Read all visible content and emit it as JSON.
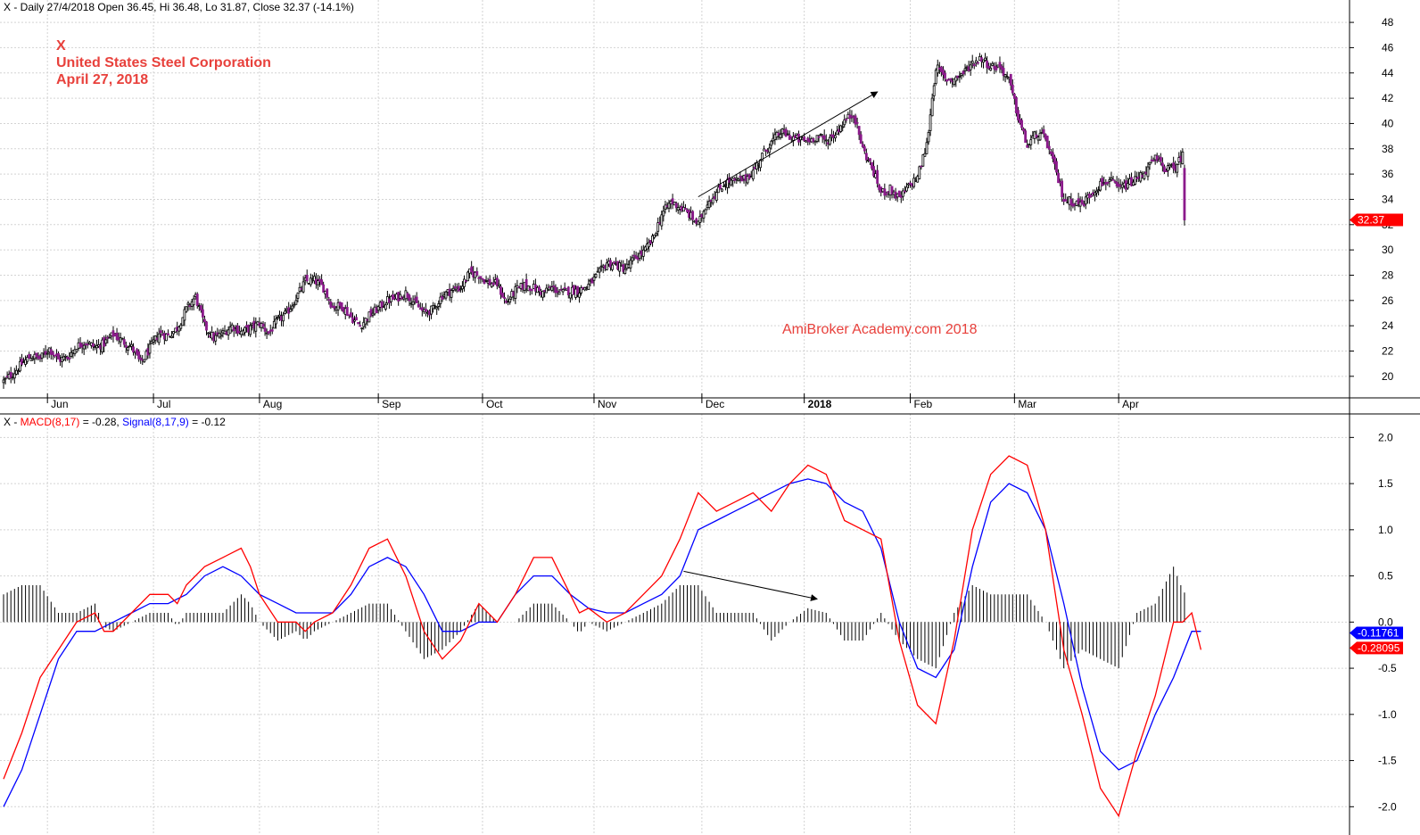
{
  "header": {
    "price_info": "X - Daily 27/4/2018 Open 36.45, Hi 36.48, Lo 31.87, Close 32.37 (-14.1%)",
    "macd_prefix": "X - ",
    "macd_label": "MACD(8,17)",
    "macd_value_text": " = -0.28, ",
    "signal_label": "Signal(8,17,9)",
    "signal_value_text": " = -0.12"
  },
  "title": {
    "symbol": "X",
    "company": "United States Steel Corporation",
    "date": "April 27, 2018"
  },
  "watermark": "AmiBroker Academy.com   2018",
  "colors": {
    "title": "#e8413c",
    "bull_candle": "#ffffff",
    "bear_candle": "#8b1a8b",
    "macd": "#ff0000",
    "signal": "#0000ff",
    "histogram": "#000000",
    "grid": "#d3d3d3",
    "last_price_tag": "#ff0000",
    "signal_tag": "#0000ff",
    "macd_tag": "#ff0000"
  },
  "chart_data": [
    {
      "type": "candlestick",
      "name": "price",
      "x_labels": [
        "Jun",
        "Jul",
        "Aug",
        "Sep",
        "Oct",
        "Nov",
        "Dec",
        "2018",
        "Feb",
        "Mar",
        "Apr"
      ],
      "ylim": [
        19,
        48.5
      ],
      "y_ticks": [
        20,
        22,
        24,
        26,
        28,
        30,
        32,
        34,
        36,
        38,
        40,
        42,
        44,
        46,
        48
      ],
      "last_close": "32.37",
      "close_points": [
        [
          0,
          19.6
        ],
        [
          5,
          20.2
        ],
        [
          10,
          21.0
        ],
        [
          15,
          21.6
        ],
        [
          20,
          21.4
        ],
        [
          25,
          22.2
        ],
        [
          30,
          21.3
        ],
        [
          35,
          21.5
        ],
        [
          40,
          22.4
        ],
        [
          45,
          22.7
        ],
        [
          50,
          22.3
        ],
        [
          55,
          22.6
        ],
        [
          60,
          23.3
        ],
        [
          65,
          22.8
        ],
        [
          70,
          22.3
        ],
        [
          75,
          21.0
        ],
        [
          80,
          22.2
        ],
        [
          85,
          23.4
        ],
        [
          90,
          23.2
        ],
        [
          95,
          23.8
        ],
        [
          100,
          25.3
        ],
        [
          105,
          26.3
        ],
        [
          110,
          24.0
        ],
        [
          115,
          23.0
        ],
        [
          120,
          23.4
        ],
        [
          125,
          24.0
        ],
        [
          130,
          23.5
        ],
        [
          135,
          23.8
        ],
        [
          140,
          24.2
        ],
        [
          145,
          23.4
        ],
        [
          150,
          24.4
        ],
        [
          155,
          25.0
        ],
        [
          160,
          26.2
        ],
        [
          165,
          27.5
        ],
        [
          170,
          27.6
        ],
        [
          175,
          27.0
        ],
        [
          180,
          25.5
        ],
        [
          185,
          25.6
        ],
        [
          190,
          24.7
        ],
        [
          195,
          24.0
        ],
        [
          200,
          24.8
        ],
        [
          205,
          25.4
        ],
        [
          210,
          26.0
        ],
        [
          215,
          26.2
        ],
        [
          220,
          26.6
        ],
        [
          225,
          25.8
        ],
        [
          230,
          25.0
        ],
        [
          235,
          25.3
        ],
        [
          240,
          26.4
        ],
        [
          245,
          26.8
        ],
        [
          250,
          27.0
        ],
        [
          255,
          28.2
        ],
        [
          260,
          28.0
        ],
        [
          265,
          27.4
        ],
        [
          270,
          27.3
        ],
        [
          275,
          25.8
        ],
        [
          280,
          26.8
        ],
        [
          285,
          27.2
        ],
        [
          290,
          27.0
        ],
        [
          295,
          26.6
        ],
        [
          300,
          27.0
        ],
        [
          305,
          26.6
        ],
        [
          310,
          26.8
        ],
        [
          315,
          26.8
        ],
        [
          320,
          27.2
        ],
        [
          325,
          28.0
        ],
        [
          330,
          29.0
        ],
        [
          335,
          28.8
        ],
        [
          340,
          28.5
        ],
        [
          345,
          29.3
        ],
        [
          350,
          29.8
        ],
        [
          355,
          30.8
        ],
        [
          360,
          32.8
        ],
        [
          365,
          33.8
        ],
        [
          370,
          33.4
        ],
        [
          375,
          32.8
        ],
        [
          380,
          32.0
        ],
        [
          385,
          33.8
        ],
        [
          390,
          34.5
        ],
        [
          395,
          35.4
        ],
        [
          400,
          35.4
        ],
        [
          405,
          35.6
        ],
        [
          410,
          36.2
        ],
        [
          415,
          37.5
        ],
        [
          420,
          38.5
        ],
        [
          425,
          39.3
        ],
        [
          430,
          39.0
        ],
        [
          435,
          38.7
        ],
        [
          440,
          38.6
        ],
        [
          445,
          39.0
        ],
        [
          450,
          38.6
        ],
        [
          455,
          39.2
        ],
        [
          460,
          40.2
        ],
        [
          465,
          40.8
        ],
        [
          470,
          38.0
        ],
        [
          475,
          36.5
        ],
        [
          480,
          34.5
        ],
        [
          485,
          34.8
        ],
        [
          490,
          34.0
        ],
        [
          495,
          35.0
        ],
        [
          500,
          35.8
        ],
        [
          505,
          38.3
        ],
        [
          510,
          44.5
        ],
        [
          515,
          43.5
        ],
        [
          520,
          43.5
        ],
        [
          525,
          44.0
        ],
        [
          530,
          44.8
        ],
        [
          535,
          45.2
        ],
        [
          540,
          44.5
        ],
        [
          545,
          44.5
        ],
        [
          550,
          43.4
        ],
        [
          555,
          40.5
        ],
        [
          560,
          38.2
        ],
        [
          565,
          39.2
        ],
        [
          570,
          38.8
        ],
        [
          575,
          36.5
        ],
        [
          580,
          34.0
        ],
        [
          585,
          33.8
        ],
        [
          590,
          33.6
        ],
        [
          595,
          34.5
        ],
        [
          600,
          35.2
        ],
        [
          605,
          35.5
        ],
        [
          610,
          34.8
        ],
        [
          615,
          35.2
        ],
        [
          620,
          35.6
        ],
        [
          625,
          36.3
        ],
        [
          630,
          37.2
        ],
        [
          635,
          36.5
        ],
        [
          640,
          36.4
        ],
        [
          645,
          37.5
        ],
        [
          646,
          32.37
        ]
      ],
      "annotations": [
        {
          "type": "arrow",
          "from": [
            380,
            34.2
          ],
          "to": [
            478,
            42.5
          ]
        }
      ]
    },
    {
      "type": "line",
      "name": "macd",
      "x_labels": [],
      "ylim": [
        -2.2,
        2.1
      ],
      "y_ticks": [
        2.0,
        1.5,
        1.0,
        0.5,
        0.0,
        -0.5,
        -1.0,
        -1.5,
        -2.0
      ],
      "series": [
        {
          "name": "MACD(8,17)",
          "last": "-0.28095",
          "points": [
            [
              0,
              -1.7
            ],
            [
              10,
              -1.2
            ],
            [
              20,
              -0.6
            ],
            [
              30,
              -0.3
            ],
            [
              40,
              0.0
            ],
            [
              50,
              0.1
            ],
            [
              55,
              -0.1
            ],
            [
              60,
              -0.1
            ],
            [
              70,
              0.1
            ],
            [
              80,
              0.3
            ],
            [
              90,
              0.3
            ],
            [
              95,
              0.2
            ],
            [
              100,
              0.4
            ],
            [
              110,
              0.6
            ],
            [
              120,
              0.7
            ],
            [
              130,
              0.8
            ],
            [
              135,
              0.6
            ],
            [
              140,
              0.3
            ],
            [
              150,
              0.0
            ],
            [
              160,
              0.0
            ],
            [
              165,
              -0.1
            ],
            [
              170,
              0.0
            ],
            [
              180,
              0.1
            ],
            [
              190,
              0.4
            ],
            [
              200,
              0.8
            ],
            [
              210,
              0.9
            ],
            [
              220,
              0.5
            ],
            [
              230,
              -0.1
            ],
            [
              240,
              -0.4
            ],
            [
              250,
              -0.2
            ],
            [
              260,
              0.2
            ],
            [
              270,
              0.0
            ],
            [
              280,
              0.3
            ],
            [
              290,
              0.7
            ],
            [
              300,
              0.7
            ],
            [
              310,
              0.3
            ],
            [
              315,
              0.1
            ],
            [
              320,
              0.15
            ],
            [
              330,
              0.0
            ],
            [
              340,
              0.1
            ],
            [
              350,
              0.3
            ],
            [
              360,
              0.5
            ],
            [
              370,
              0.9
            ],
            [
              380,
              1.4
            ],
            [
              390,
              1.2
            ],
            [
              400,
              1.3
            ],
            [
              410,
              1.4
            ],
            [
              420,
              1.2
            ],
            [
              430,
              1.5
            ],
            [
              440,
              1.7
            ],
            [
              450,
              1.6
            ],
            [
              460,
              1.1
            ],
            [
              470,
              1.0
            ],
            [
              480,
              0.9
            ],
            [
              490,
              -0.2
            ],
            [
              500,
              -0.9
            ],
            [
              510,
              -1.1
            ],
            [
              520,
              -0.2
            ],
            [
              530,
              1.0
            ],
            [
              540,
              1.6
            ],
            [
              550,
              1.8
            ],
            [
              560,
              1.7
            ],
            [
              570,
              1.0
            ],
            [
              580,
              -0.3
            ],
            [
              590,
              -1.0
            ],
            [
              600,
              -1.8
            ],
            [
              610,
              -2.1
            ],
            [
              620,
              -1.4
            ],
            [
              630,
              -0.8
            ],
            [
              640,
              0.0
            ],
            [
              645,
              0.0
            ],
            [
              650,
              0.1
            ],
            [
              655,
              -0.3
            ]
          ]
        },
        {
          "name": "Signal(8,17,9)",
          "last": "-0.11761",
          "points": [
            [
              0,
              -2.0
            ],
            [
              10,
              -1.6
            ],
            [
              20,
              -1.0
            ],
            [
              30,
              -0.4
            ],
            [
              40,
              -0.1
            ],
            [
              50,
              -0.1
            ],
            [
              60,
              0.0
            ],
            [
              70,
              0.1
            ],
            [
              80,
              0.2
            ],
            [
              90,
              0.2
            ],
            [
              100,
              0.3
            ],
            [
              110,
              0.5
            ],
            [
              120,
              0.6
            ],
            [
              130,
              0.5
            ],
            [
              140,
              0.3
            ],
            [
              150,
              0.2
            ],
            [
              160,
              0.1
            ],
            [
              170,
              0.1
            ],
            [
              180,
              0.1
            ],
            [
              190,
              0.3
            ],
            [
              200,
              0.6
            ],
            [
              210,
              0.7
            ],
            [
              220,
              0.6
            ],
            [
              230,
              0.3
            ],
            [
              240,
              -0.1
            ],
            [
              250,
              -0.1
            ],
            [
              260,
              0.0
            ],
            [
              270,
              0.0
            ],
            [
              280,
              0.3
            ],
            [
              290,
              0.5
            ],
            [
              300,
              0.5
            ],
            [
              310,
              0.3
            ],
            [
              320,
              0.15
            ],
            [
              330,
              0.1
            ],
            [
              340,
              0.1
            ],
            [
              350,
              0.2
            ],
            [
              360,
              0.3
            ],
            [
              370,
              0.5
            ],
            [
              380,
              1.0
            ],
            [
              390,
              1.1
            ],
            [
              400,
              1.2
            ],
            [
              410,
              1.3
            ],
            [
              420,
              1.4
            ],
            [
              430,
              1.5
            ],
            [
              440,
              1.55
            ],
            [
              450,
              1.5
            ],
            [
              460,
              1.3
            ],
            [
              470,
              1.2
            ],
            [
              480,
              0.8
            ],
            [
              490,
              0.0
            ],
            [
              500,
              -0.5
            ],
            [
              510,
              -0.6
            ],
            [
              520,
              -0.3
            ],
            [
              530,
              0.6
            ],
            [
              540,
              1.3
            ],
            [
              550,
              1.5
            ],
            [
              560,
              1.4
            ],
            [
              570,
              1.0
            ],
            [
              580,
              0.2
            ],
            [
              590,
              -0.7
            ],
            [
              600,
              -1.4
            ],
            [
              610,
              -1.6
            ],
            [
              620,
              -1.5
            ],
            [
              630,
              -1.0
            ],
            [
              640,
              -0.6
            ],
            [
              650,
              -0.1
            ],
            [
              655,
              -0.1
            ]
          ]
        }
      ],
      "annotations": [
        {
          "type": "arrow",
          "from": [
            372,
            0.55
          ],
          "to": [
            445,
            0.25
          ]
        }
      ]
    }
  ]
}
